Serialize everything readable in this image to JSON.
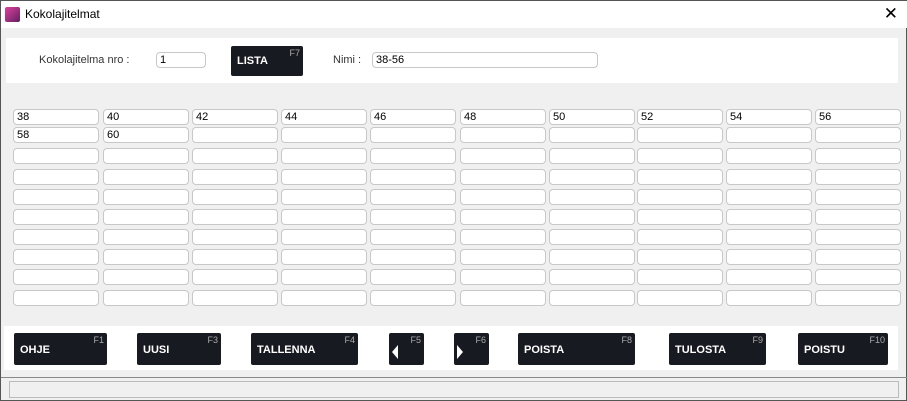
{
  "window": {
    "title": "Kokolajitelmat",
    "close_icon": "close-icon"
  },
  "header": {
    "nro_label": "Kokolajitelma nro :",
    "nro_value": "1",
    "lista_label": "LISTA",
    "lista_key": "F7",
    "nimi_label": "Nimi :",
    "nimi_value": "38-56"
  },
  "grid": {
    "rows": [
      [
        "38",
        "40",
        "42",
        "44",
        "46",
        "48",
        "50",
        "52",
        "54",
        "56"
      ],
      [
        "58",
        "60",
        "",
        "",
        "",
        "",
        "",
        "",
        "",
        ""
      ],
      [
        "",
        "",
        "",
        "",
        "",
        "",
        "",
        "",
        "",
        ""
      ],
      [
        "",
        "",
        "",
        "",
        "",
        "",
        "",
        "",
        "",
        ""
      ],
      [
        "",
        "",
        "",
        "",
        "",
        "",
        "",
        "",
        "",
        ""
      ],
      [
        "",
        "",
        "",
        "",
        "",
        "",
        "",
        "",
        "",
        ""
      ],
      [
        "",
        "",
        "",
        "",
        "",
        "",
        "",
        "",
        "",
        ""
      ],
      [
        "",
        "",
        "",
        "",
        "",
        "",
        "",
        "",
        "",
        ""
      ],
      [
        "",
        "",
        "",
        "",
        "",
        "",
        "",
        "",
        "",
        ""
      ],
      [
        "",
        "",
        "",
        "",
        "",
        "",
        "",
        "",
        "",
        ""
      ]
    ]
  },
  "toolbar": [
    {
      "label": "OHJE",
      "key": "F1"
    },
    {
      "label": "UUSI",
      "key": "F3"
    },
    {
      "label": "TALLENNA",
      "key": "F4"
    },
    {
      "label": "",
      "key": "F5",
      "icon": "arrow-left-icon"
    },
    {
      "label": "",
      "key": "F6",
      "icon": "arrow-right-icon"
    },
    {
      "label": "POISTA",
      "key": "F8"
    },
    {
      "label": "TULOSTA",
      "key": "F9"
    },
    {
      "label": "POISTU",
      "key": "F10"
    }
  ]
}
